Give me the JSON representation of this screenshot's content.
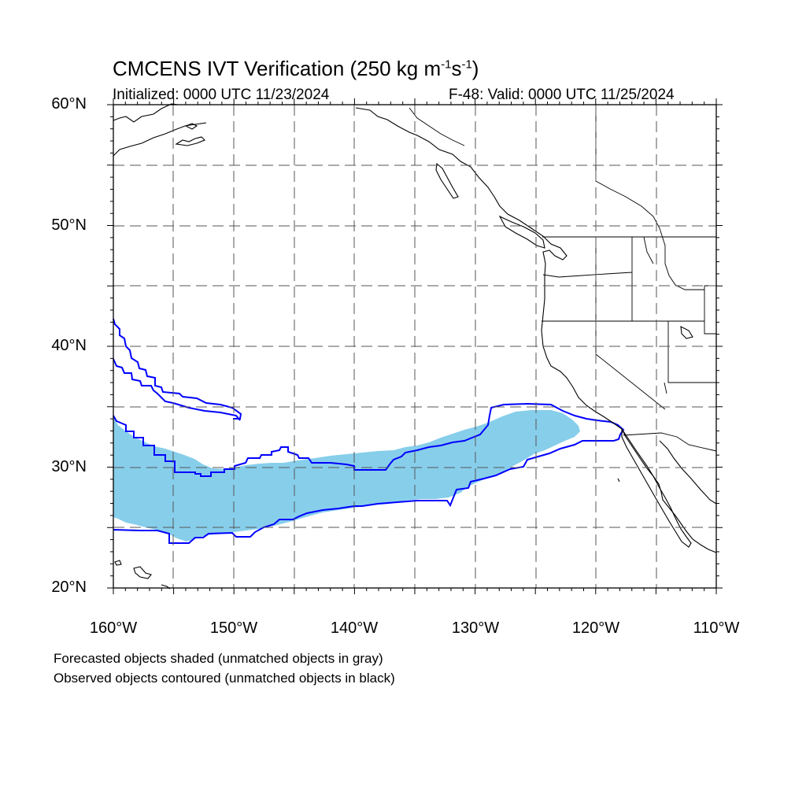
{
  "title": {
    "main": "CMCENS IVT Verification (250 kg m",
    "sup1": "-1",
    "s": "s",
    "sup2": "-1",
    "close": ")"
  },
  "initialized": "Initialized: 0000 UTC 11/23/2024",
  "valid": "F-48: Valid: 0000 UTC 11/25/2024",
  "lat_labels": [
    "60°N",
    "50°N",
    "40°N",
    "30°N",
    "20°N"
  ],
  "lon_labels": [
    "160°W",
    "150°W",
    "140°W",
    "130°W",
    "120°W",
    "110°W"
  ],
  "footnotes": [
    "Forecasted objects shaded (unmatched objects in gray)",
    "Observed objects contoured (unmatched objects in black)"
  ],
  "colors": {
    "forecast_fill": "#87ceeb",
    "observed_contour": "#0000ff",
    "coastline": "#000000",
    "grid": "#555555"
  }
}
